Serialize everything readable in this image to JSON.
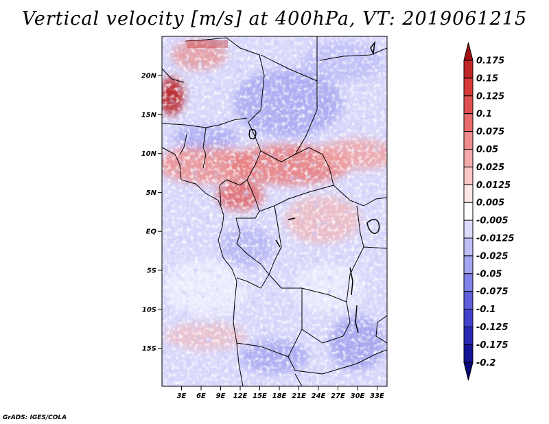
{
  "title": "Vertical velocity [m/s] at 400hPa, VT: 2019061215",
  "footer": "GrADS: IGES/COLA",
  "map": {
    "lat_ticks": [
      "20N",
      "15N",
      "10N",
      "5N",
      "EQ",
      "5S",
      "10S",
      "15S"
    ],
    "lon_ticks": [
      "3E",
      "6E",
      "9E",
      "12E",
      "15E",
      "18E",
      "21E",
      "24E",
      "27E",
      "30E",
      "33E"
    ]
  },
  "colorbar": {
    "labels": [
      "0.175",
      "0.15",
      "0.125",
      "0.1",
      "0.075",
      "0.05",
      "0.025",
      "0.0125",
      "0.005",
      "-0.005",
      "-0.0125",
      "-0.025",
      "-0.05",
      "-0.075",
      "-0.1",
      "-0.125",
      "-0.175",
      "-0.2"
    ],
    "colors": [
      "#a01010",
      "#c02828",
      "#d83a3a",
      "#e05050",
      "#e86c6c",
      "#f08c8c",
      "#f5abab",
      "#fac8c8",
      "#fde6e6",
      "#ffffff",
      "#dcdcfc",
      "#c0c0f6",
      "#a4a4f0",
      "#8282e8",
      "#6060dc",
      "#4242cc",
      "#2828b4",
      "#141496",
      "#0a0a78"
    ]
  },
  "colors": {
    "positive_max": "#a01010",
    "negative_max": "#0a0a78",
    "background_field": "#d6d6fa"
  }
}
